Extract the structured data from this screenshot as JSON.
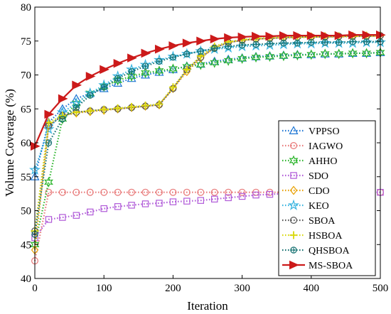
{
  "chart_data": {
    "type": "line",
    "title": "",
    "xlabel": "Iteration",
    "ylabel": "Volume Coverage (%)",
    "xlim": [
      0,
      500
    ],
    "ylim": [
      40,
      80
    ],
    "xticks": [
      "0",
      "100",
      "200",
      "300",
      "400",
      "500"
    ],
    "yticks": [
      "40",
      "45",
      "50",
      "55",
      "60",
      "65",
      "70",
      "75",
      "80"
    ],
    "grid": false,
    "legend_position": "bottom-right",
    "x": [
      0,
      20,
      40,
      60,
      80,
      100,
      120,
      140,
      160,
      180,
      200,
      220,
      240,
      260,
      280,
      300,
      320,
      340,
      360,
      380,
      400,
      420,
      440,
      460,
      480,
      500
    ],
    "series": [
      {
        "name": "VPPSO",
        "color": "#1f77d4",
        "marker": "triangle",
        "line": "dotted",
        "values": [
          55.0,
          63.0,
          65.0,
          66.5,
          67.3,
          68.0,
          68.8,
          69.5,
          70.0,
          70.4,
          70.8,
          71.3,
          71.6,
          72.0,
          72.3,
          72.5,
          72.7,
          72.8,
          72.9,
          73.0,
          73.0,
          73.1,
          73.1,
          73.2,
          73.2,
          73.3
        ]
      },
      {
        "name": "IAGWO",
        "color": "#e87878",
        "marker": "circle",
        "line": "dotted",
        "values": [
          42.6,
          52.7,
          52.7,
          52.7,
          52.7,
          52.7,
          52.7,
          52.7,
          52.7,
          52.7,
          52.7,
          52.7,
          52.7,
          52.7,
          52.7,
          52.7,
          52.7,
          52.7,
          52.7,
          52.7,
          52.7,
          52.7,
          52.7,
          52.7,
          52.7,
          52.7
        ]
      },
      {
        "name": "AHHO",
        "color": "#2cb52c",
        "marker": "hexagram",
        "line": "dotted",
        "values": [
          45.0,
          54.2,
          63.5,
          65.8,
          67.3,
          68.3,
          69.2,
          69.8,
          70.3,
          70.6,
          70.9,
          71.2,
          71.5,
          71.8,
          72.1,
          72.4,
          72.6,
          72.7,
          72.8,
          72.9,
          73.0,
          73.1,
          73.1,
          73.2,
          73.2,
          73.3
        ]
      },
      {
        "name": "SDO",
        "color": "#b05ad8",
        "marker": "square",
        "line": "dotted",
        "values": [
          46.0,
          48.7,
          49.0,
          49.3,
          49.8,
          50.3,
          50.6,
          50.8,
          51.0,
          51.1,
          51.3,
          51.4,
          51.5,
          51.7,
          51.9,
          52.1,
          52.3,
          52.4,
          52.5,
          52.5,
          52.6,
          52.6,
          52.6,
          52.7,
          52.7,
          52.7
        ]
      },
      {
        "name": "CDO",
        "color": "#e8a000",
        "marker": "diamond",
        "line": "dotted",
        "values": [
          44.2,
          62.5,
          64.0,
          64.4,
          64.6,
          64.8,
          65.0,
          65.2,
          65.4,
          65.6,
          68.0,
          70.5,
          72.5,
          74.0,
          74.8,
          75.1,
          75.3,
          75.4,
          75.5,
          75.5,
          75.6,
          75.6,
          75.6,
          75.7,
          75.7,
          75.7
        ]
      },
      {
        "name": "KEO",
        "color": "#38b4e0",
        "marker": "pentagram",
        "line": "dotted",
        "values": [
          56.0,
          62.0,
          64.5,
          65.8,
          67.3,
          68.5,
          69.8,
          70.8,
          71.5,
          72.2,
          72.7,
          73.1,
          73.5,
          73.8,
          74.0,
          74.2,
          74.3,
          74.4,
          74.5,
          74.6,
          74.6,
          74.7,
          74.7,
          74.7,
          74.8,
          74.8
        ]
      },
      {
        "name": "SBOA",
        "color": "#555555",
        "marker": "circle",
        "line": "dotted",
        "values": [
          47.0,
          62.5,
          64.0,
          64.5,
          64.7,
          64.9,
          65.0,
          65.2,
          65.4,
          65.6,
          68.0,
          70.8,
          72.6,
          74.0,
          74.8,
          75.1,
          75.3,
          75.4,
          75.5,
          75.6,
          75.6,
          75.6,
          75.7,
          75.7,
          75.7,
          75.8
        ]
      },
      {
        "name": "HSBOA",
        "color": "#d8d80a",
        "marker": "plus",
        "line": "dotted",
        "values": [
          47.0,
          63.0,
          64.0,
          64.5,
          64.7,
          64.9,
          65.1,
          65.3,
          65.5,
          65.7,
          68.2,
          70.8,
          72.8,
          74.2,
          74.9,
          75.2,
          75.4,
          75.5,
          75.6,
          75.6,
          75.6,
          75.7,
          75.7,
          75.7,
          75.8,
          75.8
        ]
      },
      {
        "name": "QHSBOA",
        "color": "#137070",
        "marker": "circle-star",
        "line": "dotted",
        "values": [
          46.5,
          60.0,
          63.5,
          65.2,
          67.0,
          68.2,
          69.5,
          70.5,
          71.3,
          72.0,
          72.6,
          73.1,
          73.5,
          73.9,
          74.2,
          74.4,
          74.5,
          74.6,
          74.7,
          74.7,
          74.8,
          74.8,
          74.8,
          74.9,
          74.9,
          74.9
        ]
      },
      {
        "name": "MS-SBOA",
        "color": "#cc1a1a",
        "marker": "triangle-right",
        "line": "solid",
        "values": [
          59.5,
          64.2,
          66.5,
          68.5,
          69.8,
          70.8,
          71.7,
          72.5,
          73.2,
          73.8,
          74.3,
          74.7,
          75.0,
          75.3,
          75.5,
          75.6,
          75.7,
          75.7,
          75.8,
          75.8,
          75.8,
          75.8,
          75.8,
          75.9,
          75.9,
          75.9
        ]
      }
    ]
  }
}
